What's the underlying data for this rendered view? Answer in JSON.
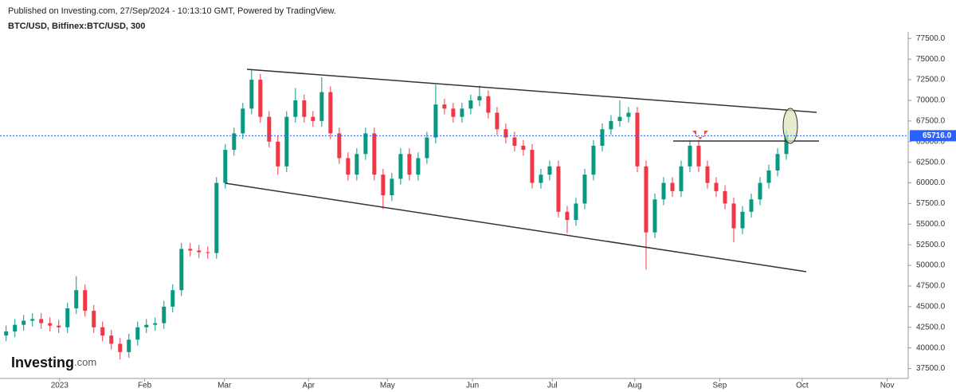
{
  "header": {
    "published": "Published on Investing.com, 27/Sep/2024 - 10:13:10 GMT, Powered by TradingView.",
    "symbol": "BTC/USD, Bitfinex:BTC/USD, 300"
  },
  "logo": {
    "brand": "Investing",
    "suffix": ".com"
  },
  "chart_data": {
    "type": "candlestick",
    "up_color": "#089981",
    "down_color": "#f23645",
    "categories": [
      null,
      null,
      null,
      null,
      null,
      null,
      null,
      null,
      null,
      null,
      null,
      null,
      null,
      null,
      null,
      null,
      null,
      null,
      null,
      null,
      null,
      null,
      null,
      null,
      null,
      null,
      null,
      null,
      null,
      null,
      null,
      null,
      null,
      null,
      null,
      null,
      null,
      null,
      null,
      null,
      null,
      null,
      null,
      null,
      null,
      null,
      null,
      null,
      null,
      null,
      null,
      null,
      null,
      null,
      null,
      null,
      null,
      null,
      null,
      null,
      null,
      null,
      null,
      null,
      null,
      null,
      null,
      null,
      null,
      null,
      null,
      null,
      null,
      null,
      null,
      null,
      null,
      null,
      null,
      null,
      null,
      null,
      null,
      null,
      null,
      null,
      null,
      null,
      null,
      null
    ],
    "open": [
      41500,
      42000,
      42800,
      43300,
      43500,
      43000,
      42700,
      42500,
      44800,
      47000,
      44500,
      42500,
      41500,
      40500,
      39500,
      41000,
      42500,
      42800,
      43000,
      45000,
      47000,
      52000,
      51800,
      51600,
      51500,
      60000,
      64000,
      66000,
      69000,
      72500,
      68000,
      65000,
      62000,
      68000,
      70000,
      68000,
      67500,
      71000,
      66000,
      63000,
      61000,
      63500,
      66000,
      61000,
      58500,
      60500,
      63500,
      61000,
      63000,
      65500,
      69500,
      69000,
      68000,
      69000,
      70000,
      70500,
      68500,
      66500,
      65500,
      64500,
      64000,
      60000,
      61000,
      62000,
      56500,
      55500,
      57500,
      61000,
      64500,
      66500,
      67500,
      68000,
      68500,
      62000,
      54000,
      58000,
      60000,
      59000,
      62000,
      64500,
      62000,
      60000,
      59000,
      57500,
      54500,
      56500,
      58000,
      60000,
      61500,
      63500
    ],
    "high": [
      42700,
      43500,
      44000,
      44200,
      44200,
      43700,
      43400,
      45500,
      48700,
      47700,
      45200,
      43200,
      42200,
      41200,
      41700,
      43200,
      43500,
      43700,
      45700,
      47700,
      52700,
      52700,
      52500,
      52300,
      60700,
      64700,
      66700,
      69700,
      73800,
      73200,
      68700,
      65700,
      68700,
      71500,
      70700,
      68700,
      72800,
      71700,
      66700,
      63700,
      64200,
      66700,
      66700,
      61700,
      61200,
      64200,
      64200,
      63700,
      66200,
      71900,
      70200,
      69700,
      69700,
      70700,
      71800,
      71200,
      69200,
      67200,
      66200,
      65200,
      64700,
      61700,
      62700,
      62700,
      57200,
      58200,
      61700,
      65200,
      67200,
      68200,
      70000,
      69200,
      69200,
      62700,
      58700,
      60700,
      60700,
      62700,
      65200,
      65200,
      62700,
      60700,
      59700,
      58200,
      57200,
      58700,
      60700,
      62200,
      64200,
      66400
    ],
    "low": [
      40800,
      41300,
      42100,
      42600,
      42300,
      42000,
      41800,
      41800,
      44100,
      43800,
      41800,
      40800,
      39800,
      38600,
      38800,
      40300,
      41800,
      42100,
      42300,
      44300,
      46300,
      51100,
      50900,
      50800,
      50800,
      59300,
      63300,
      65300,
      68300,
      67300,
      64300,
      61000,
      61300,
      67300,
      67300,
      66800,
      66800,
      65300,
      62300,
      60300,
      60300,
      62800,
      60300,
      56800,
      57800,
      59800,
      60300,
      60300,
      62300,
      64800,
      68300,
      67300,
      67300,
      68300,
      69300,
      67800,
      65800,
      64800,
      63800,
      63300,
      59300,
      59300,
      60300,
      55800,
      53900,
      54800,
      56800,
      60300,
      63800,
      65800,
      66800,
      67300,
      61300,
      49500,
      53300,
      57300,
      58300,
      58300,
      61300,
      61300,
      59300,
      58300,
      56800,
      52800,
      53800,
      55800,
      57300,
      59300,
      60800,
      62800
    ],
    "close": [
      42000,
      42800,
      43300,
      43500,
      43000,
      42700,
      42500,
      44800,
      47000,
      44500,
      42500,
      41500,
      40500,
      39500,
      41000,
      42500,
      42800,
      43000,
      45000,
      47000,
      52000,
      51800,
      51600,
      51500,
      60000,
      64000,
      66000,
      69000,
      72500,
      68000,
      65000,
      62000,
      68000,
      70000,
      68000,
      67500,
      71000,
      66000,
      63000,
      61000,
      63500,
      66000,
      61000,
      58500,
      60500,
      63500,
      61000,
      63000,
      65500,
      69500,
      69000,
      68000,
      69000,
      70000,
      70500,
      68500,
      66500,
      65500,
      64500,
      64000,
      60000,
      61000,
      62000,
      56500,
      55500,
      57500,
      61000,
      64500,
      66500,
      67500,
      68000,
      68500,
      62000,
      54000,
      58000,
      60000,
      59000,
      62000,
      64500,
      62000,
      60000,
      59000,
      57500,
      54500,
      56500,
      58000,
      60000,
      61500,
      63500,
      65716
    ],
    "xlim": [
      -0.7,
      102.9
    ],
    "xticks": [
      {
        "value": 6.1,
        "label": "2023"
      },
      {
        "value": 15.8,
        "label": "Feb"
      },
      {
        "value": 24.9,
        "label": "Mar"
      },
      {
        "value": 34.5,
        "label": "Apr"
      },
      {
        "value": 43.5,
        "label": "May"
      },
      {
        "value": 53.2,
        "label": "Jun"
      },
      {
        "value": 62.3,
        "label": "Jul"
      },
      {
        "value": 71.7,
        "label": "Aug"
      },
      {
        "value": 81.4,
        "label": "Sep"
      },
      {
        "value": 90.8,
        "label": "Oct"
      },
      {
        "value": 100.5,
        "label": "Nov"
      }
    ],
    "ylim": [
      36300,
      78300
    ],
    "yticks": [
      {
        "value": 37500,
        "label": "37500.0"
      },
      {
        "value": 40000,
        "label": "40000.0"
      },
      {
        "value": 42500,
        "label": "42500.0"
      },
      {
        "value": 45000,
        "label": "45000.0"
      },
      {
        "value": 47500,
        "label": "47500.0"
      },
      {
        "value": 50000,
        "label": "50000.0"
      },
      {
        "value": 52500,
        "label": "52500.0"
      },
      {
        "value": 55000,
        "label": "55000.0"
      },
      {
        "value": 57500,
        "label": "57500.0"
      },
      {
        "value": 60000,
        "label": "60000.0"
      },
      {
        "value": 62500,
        "label": "62500.0"
      },
      {
        "value": 65000,
        "label": "65000.0"
      },
      {
        "value": 67500,
        "label": "67500.0"
      },
      {
        "value": 70000,
        "label": "70000.0"
      },
      {
        "value": 72500,
        "label": "72500.0"
      },
      {
        "value": 75000,
        "label": "75000.0"
      },
      {
        "value": 77500,
        "label": "77500.0"
      }
    ],
    "last_price": {
      "value": 65716,
      "label": "65716.0",
      "color": "#2962ff"
    }
  }
}
